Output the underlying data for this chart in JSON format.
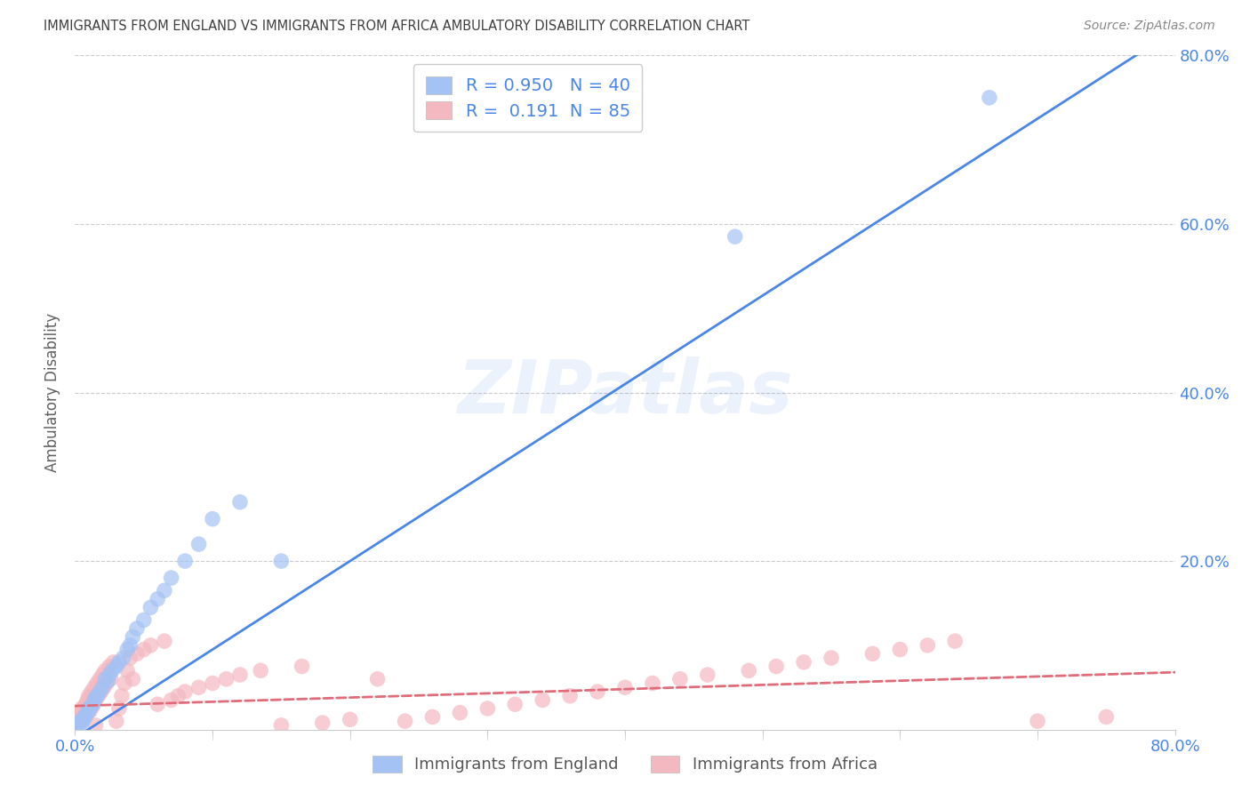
{
  "title": "IMMIGRANTS FROM ENGLAND VS IMMIGRANTS FROM AFRICA AMBULATORY DISABILITY CORRELATION CHART",
  "source": "Source: ZipAtlas.com",
  "ylabel": "Ambulatory Disability",
  "xmin": 0.0,
  "xmax": 0.8,
  "ymin": 0.0,
  "ymax": 0.8,
  "england_color": "#a4c2f4",
  "africa_color": "#f4b8c1",
  "england_edge_color": "#6d9eeb",
  "africa_edge_color": "#e06c7a",
  "england_R": 0.95,
  "england_N": 40,
  "africa_R": 0.191,
  "africa_N": 85,
  "england_line_color": "#4a86e8",
  "africa_line_color": "#e06c7a",
  "watermark_text": "ZIPatlas",
  "watermark_color": "#4a86e8",
  "tick_label_color": "#4a86e8",
  "grid_color": "#cccccc",
  "title_color": "#404040",
  "source_color": "#888888",
  "ylabel_color": "#606060",
  "england_scatter_x": [
    0.002,
    0.003,
    0.004,
    0.005,
    0.006,
    0.007,
    0.008,
    0.009,
    0.01,
    0.01,
    0.012,
    0.013,
    0.014,
    0.015,
    0.016,
    0.018,
    0.02,
    0.022,
    0.024,
    0.025,
    0.027,
    0.03,
    0.032,
    0.035,
    0.038,
    0.04,
    0.042,
    0.045,
    0.05,
    0.055,
    0.06,
    0.065,
    0.07,
    0.08,
    0.09,
    0.1,
    0.12,
    0.15,
    0.48,
    0.665
  ],
  "england_scatter_y": [
    0.005,
    0.008,
    0.006,
    0.012,
    0.01,
    0.015,
    0.018,
    0.02,
    0.022,
    0.025,
    0.028,
    0.03,
    0.035,
    0.038,
    0.04,
    0.045,
    0.05,
    0.06,
    0.058,
    0.065,
    0.07,
    0.075,
    0.08,
    0.085,
    0.095,
    0.1,
    0.11,
    0.12,
    0.13,
    0.145,
    0.155,
    0.165,
    0.18,
    0.2,
    0.22,
    0.25,
    0.27,
    0.2,
    0.585,
    0.75
  ],
  "africa_scatter_x": [
    0.001,
    0.002,
    0.002,
    0.003,
    0.003,
    0.004,
    0.004,
    0.005,
    0.005,
    0.006,
    0.006,
    0.007,
    0.007,
    0.008,
    0.008,
    0.009,
    0.009,
    0.01,
    0.01,
    0.011,
    0.011,
    0.012,
    0.012,
    0.013,
    0.014,
    0.015,
    0.015,
    0.016,
    0.017,
    0.018,
    0.019,
    0.02,
    0.021,
    0.022,
    0.023,
    0.025,
    0.026,
    0.028,
    0.03,
    0.032,
    0.034,
    0.036,
    0.038,
    0.04,
    0.042,
    0.045,
    0.05,
    0.055,
    0.06,
    0.065,
    0.07,
    0.075,
    0.08,
    0.09,
    0.1,
    0.11,
    0.12,
    0.135,
    0.15,
    0.165,
    0.18,
    0.2,
    0.22,
    0.24,
    0.26,
    0.28,
    0.3,
    0.32,
    0.34,
    0.36,
    0.38,
    0.4,
    0.42,
    0.44,
    0.46,
    0.49,
    0.51,
    0.53,
    0.55,
    0.58,
    0.6,
    0.62,
    0.64,
    0.7,
    0.75
  ],
  "africa_scatter_y": [
    0.01,
    0.008,
    0.015,
    0.012,
    0.018,
    0.01,
    0.02,
    0.015,
    0.025,
    0.012,
    0.022,
    0.018,
    0.028,
    0.015,
    0.03,
    0.02,
    0.035,
    0.025,
    0.04,
    0.022,
    0.038,
    0.03,
    0.045,
    0.028,
    0.05,
    0.035,
    0.005,
    0.055,
    0.04,
    0.06,
    0.045,
    0.065,
    0.05,
    0.07,
    0.055,
    0.075,
    0.06,
    0.08,
    0.01,
    0.025,
    0.04,
    0.055,
    0.07,
    0.085,
    0.06,
    0.09,
    0.095,
    0.1,
    0.03,
    0.105,
    0.035,
    0.04,
    0.045,
    0.05,
    0.055,
    0.06,
    0.065,
    0.07,
    0.005,
    0.075,
    0.008,
    0.012,
    0.06,
    0.01,
    0.015,
    0.02,
    0.025,
    0.03,
    0.035,
    0.04,
    0.045,
    0.05,
    0.055,
    0.06,
    0.065,
    0.07,
    0.075,
    0.08,
    0.085,
    0.09,
    0.095,
    0.1,
    0.105,
    0.01,
    0.015
  ]
}
